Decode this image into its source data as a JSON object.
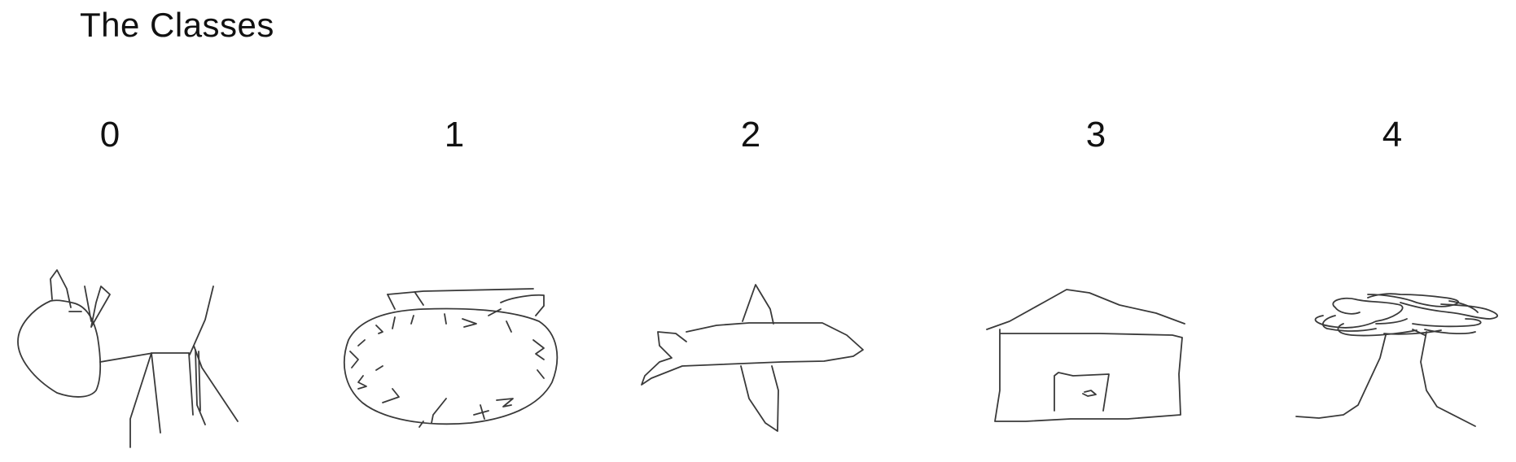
{
  "slide": {
    "title": "The Classes"
  },
  "classes": [
    {
      "label": "0",
      "icon": "cat-sketch-icon"
    },
    {
      "label": "1",
      "icon": "clock-sketch-icon"
    },
    {
      "label": "2",
      "icon": "airplane-sketch-icon"
    },
    {
      "label": "3",
      "icon": "house-sketch-icon"
    },
    {
      "label": "4",
      "icon": "tree-sketch-icon"
    }
  ],
  "colors": {
    "background": "#ffffff",
    "text": "#111111",
    "stroke": "#3a3a3a"
  }
}
